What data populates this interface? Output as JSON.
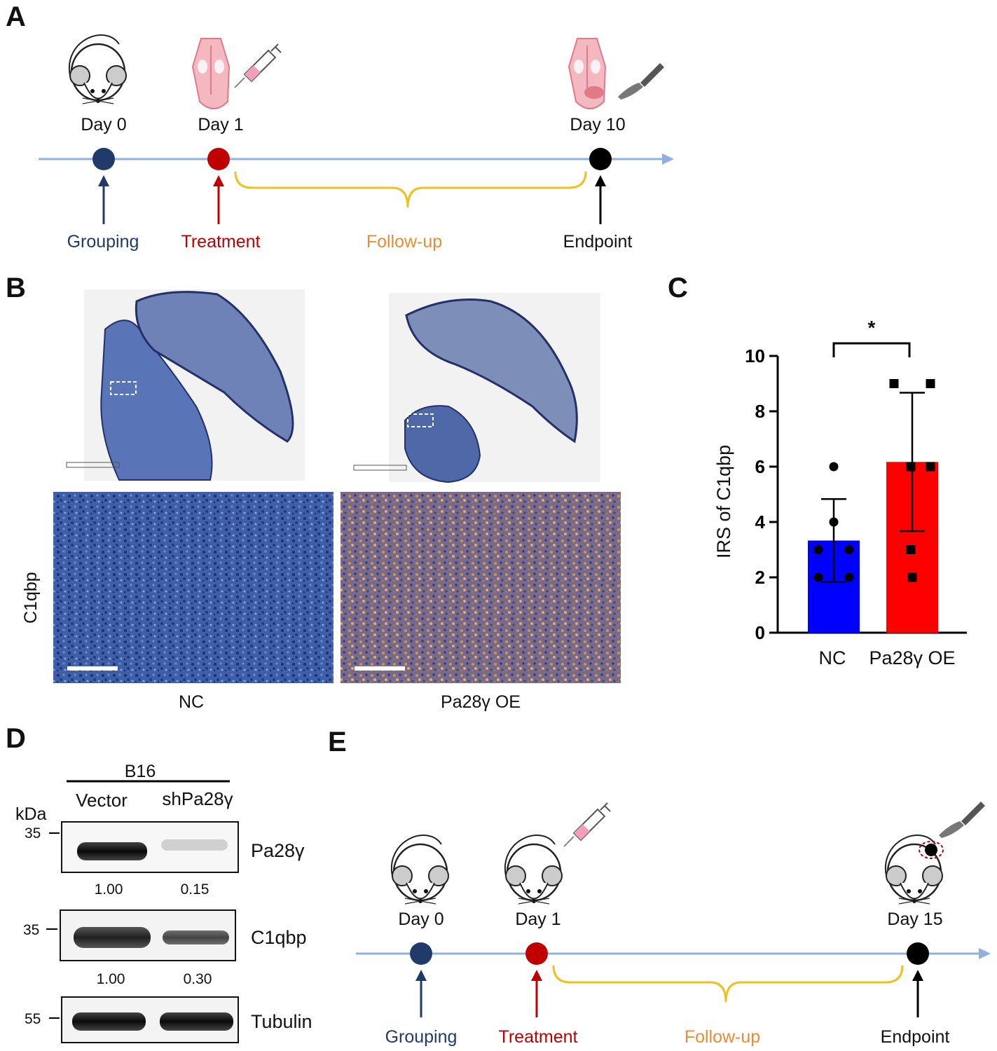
{
  "panels": {
    "a": "A",
    "b": "B",
    "c": "C",
    "d": "D",
    "e": "E"
  },
  "timeline_a": {
    "days": [
      "Day 0",
      "Day 1",
      "Day 10"
    ],
    "stages": [
      "Grouping",
      "Treatment",
      "Follow-up",
      "Endpoint"
    ],
    "colors": {
      "grouping": "#1f3a6b",
      "treatment": "#c00000",
      "followup": "#f0c020",
      "followup_text": "#f08a30",
      "endpoint": "#000000",
      "axis": "#8fb0e0"
    },
    "icons": [
      "mouse-icon",
      "tongue-syringe-icon",
      "tongue-scalpel-icon"
    ]
  },
  "ihc": {
    "row_label": "C1qbp",
    "groups": [
      "NC",
      "Pa28γ OE"
    ]
  },
  "chart_data": {
    "type": "bar",
    "categories": [
      "NC",
      "Pa28γ OE"
    ],
    "values": [
      3.33,
      6.17
    ],
    "error": [
      1.5,
      2.5
    ],
    "points": [
      [
        6,
        4,
        3,
        3,
        2,
        2
      ],
      [
        9,
        9,
        6,
        6,
        3,
        2
      ]
    ],
    "colors": [
      "#0000ff",
      "#ff0000"
    ],
    "ylabel": "IRS of C1qbp",
    "ylim": [
      0,
      10
    ],
    "yticks": [
      0,
      2,
      4,
      6,
      8,
      10
    ],
    "significance": "*"
  },
  "blot": {
    "cell_line": "B16",
    "lanes": [
      "Vector",
      "shPa28γ"
    ],
    "unit": "kDa",
    "rows": [
      {
        "protein": "Pa28γ",
        "marker": "35",
        "quant": [
          "1.00",
          "0.15"
        ]
      },
      {
        "protein": "C1qbp",
        "marker": "35",
        "quant": [
          "1.00",
          "0.30"
        ]
      },
      {
        "protein": "Tubulin",
        "marker": "55",
        "quant": []
      }
    ]
  },
  "timeline_e": {
    "days": [
      "Day 0",
      "Day 1",
      "Day 15"
    ],
    "stages": [
      "Grouping",
      "Treatment",
      "Follow-up",
      "Endpoint"
    ],
    "icons": [
      "mouse-icon",
      "mouse-syringe-icon",
      "mouse-scalpel-icon"
    ]
  }
}
